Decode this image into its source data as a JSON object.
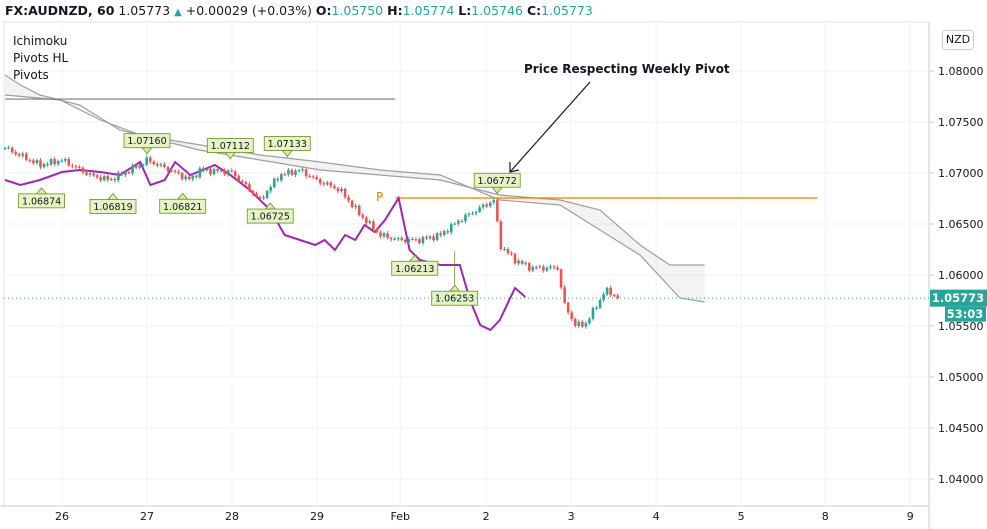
{
  "header": {
    "symbol": "FX:AUDNZD, 60",
    "last": "1.05773",
    "change": "+0.00029 (+0.03%)",
    "o_label": "O:",
    "o": "1.05750",
    "h_label": "H:",
    "h": "1.05774",
    "l_label": "L:",
    "l": "1.05746",
    "c_label": "C:",
    "c": "1.05773",
    "up_icon": "triangle-up"
  },
  "legend": [
    "Ichimoku",
    "Pivots HL",
    "Pivots"
  ],
  "currency_button": "NZD",
  "price_badge": "1.05773",
  "countdown": "53:03",
  "colors": {
    "up": "#26a69a",
    "down": "#ef5350",
    "lagging": "#9c27b0",
    "cloud": "#9e9e9e",
    "pivot": "#f57c00",
    "weekly": "#787b86"
  },
  "chart_data": {
    "type": "candlestick",
    "title": "FX:AUDNZD, 60",
    "annotation": "Price Respecting Weekly Pivot",
    "pivot_label": "P",
    "ylim": [
      1.0375,
      1.0848
    ],
    "xlim": [
      -0.73,
      10.2
    ],
    "y_ticks": [
      "1.08000",
      "1.07500",
      "1.07000",
      "1.06500",
      "1.06000",
      "1.05500",
      "1.05000",
      "1.04500",
      "1.04000"
    ],
    "x_ticks": [
      {
        "d": 0,
        "label": "26"
      },
      {
        "d": 1,
        "label": "27"
      },
      {
        "d": 2,
        "label": "28"
      },
      {
        "d": 3,
        "label": "29"
      },
      {
        "d": 3.98,
        "label": "Feb"
      },
      {
        "d": 4.99,
        "label": "2"
      },
      {
        "d": 5.99,
        "label": "3"
      },
      {
        "d": 6.99,
        "label": "4"
      },
      {
        "d": 7.99,
        "label": "5"
      },
      {
        "d": 8.98,
        "label": "8"
      },
      {
        "d": 9.98,
        "label": "9"
      }
    ],
    "price_path": [
      [
        -0.67,
        1.07245
      ],
      [
        -0.26,
        1.07078
      ],
      [
        0,
        1.07127
      ],
      [
        0.33,
        1.0698
      ],
      [
        0.56,
        1.06931
      ],
      [
        0.92,
        1.07078
      ],
      [
        1.0,
        1.07127
      ],
      [
        1.27,
        1.07029
      ],
      [
        1.51,
        1.06931
      ],
      [
        1.62,
        1.07029
      ],
      [
        1.99,
        1.0701
      ],
      [
        2.15,
        1.06882
      ],
      [
        2.33,
        1.06735
      ],
      [
        2.56,
        1.0698
      ],
      [
        2.8,
        1.07029
      ],
      [
        2.99,
        1.06931
      ],
      [
        3.27,
        1.06833
      ],
      [
        3.51,
        1.06588
      ],
      [
        3.74,
        1.06392
      ],
      [
        3.96,
        1.06343
      ],
      [
        4.21,
        1.06343
      ],
      [
        4.45,
        1.06392
      ],
      [
        4.68,
        1.06539
      ],
      [
        4.98,
        1.06686
      ],
      [
        5.09,
        1.06735
      ],
      [
        5.15,
        1.06294
      ],
      [
        5.33,
        1.06147
      ],
      [
        5.51,
        1.06069
      ],
      [
        5.86,
        1.06069
      ],
      [
        5.88,
        1.05755
      ],
      [
        6.04,
        1.0551
      ],
      [
        6.15,
        1.0551
      ],
      [
        6.33,
        1.05755
      ],
      [
        6.39,
        1.05853
      ],
      [
        6.56,
        1.05773
      ]
    ],
    "lagging_span": [
      [
        -0.67,
        1.06931
      ],
      [
        -0.49,
        1.06882
      ],
      [
        -0.26,
        1.06931
      ],
      [
        0,
        1.0701
      ],
      [
        0.21,
        1.07029
      ],
      [
        0.45,
        1.0701
      ],
      [
        0.68,
        1.0698
      ],
      [
        0.92,
        1.07108
      ],
      [
        1.04,
        1.06882
      ],
      [
        1.21,
        1.06931
      ],
      [
        1.33,
        1.07108
      ],
      [
        1.51,
        1.0698
      ],
      [
        1.8,
        1.07078
      ],
      [
        1.98,
        1.0698
      ],
      [
        2.21,
        1.06833
      ],
      [
        2.45,
        1.06637
      ],
      [
        2.62,
        1.06392
      ],
      [
        2.8,
        1.06343
      ],
      [
        2.98,
        1.06294
      ],
      [
        3.09,
        1.06343
      ],
      [
        3.21,
        1.06245
      ],
      [
        3.33,
        1.06392
      ],
      [
        3.45,
        1.06343
      ],
      [
        3.56,
        1.0649
      ],
      [
        3.68,
        1.06422
      ],
      [
        3.8,
        1.06539
      ],
      [
        3.96,
        1.06755
      ],
      [
        4.09,
        1.06245
      ],
      [
        4.21,
        1.06147
      ],
      [
        4.45,
        1.06098
      ],
      [
        4.68,
        1.06098
      ],
      [
        4.8,
        1.05755
      ],
      [
        4.92,
        1.0551
      ],
      [
        5.04,
        1.05461
      ],
      [
        5.15,
        1.05559
      ],
      [
        5.33,
        1.05873
      ],
      [
        5.45,
        1.05784
      ]
    ],
    "cloud_upper": [
      [
        -0.67,
        1.07961
      ],
      [
        -0.49,
        1.07863
      ],
      [
        -0.26,
        1.07765
      ],
      [
        0.21,
        1.07667
      ],
      [
        0.68,
        1.07422
      ],
      [
        1.15,
        1.07324
      ],
      [
        1.62,
        1.07225
      ],
      [
        2.33,
        1.07127
      ],
      [
        3.04,
        1.07029
      ],
      [
        3.74,
        1.0698
      ],
      [
        4.45,
        1.06931
      ],
      [
        5.15,
        1.06784
      ],
      [
        5.86,
        1.06735
      ],
      [
        6.33,
        1.06637
      ],
      [
        6.8,
        1.06294
      ],
      [
        7.15,
        1.06098
      ],
      [
        7.56,
        1.06098
      ]
    ],
    "cloud_lower": [
      [
        -0.67,
        1.07765
      ],
      [
        -0.02,
        1.07716
      ],
      [
        0.45,
        1.0752
      ],
      [
        0.92,
        1.07373
      ],
      [
        1.62,
        1.07275
      ],
      [
        2.33,
        1.07176
      ],
      [
        3.04,
        1.07108
      ],
      [
        3.74,
        1.07029
      ],
      [
        4.45,
        1.0698
      ],
      [
        5.15,
        1.06735
      ],
      [
        5.86,
        1.06686
      ],
      [
        6.33,
        1.06441
      ],
      [
        6.8,
        1.06196
      ],
      [
        7.27,
        1.05775
      ],
      [
        7.56,
        1.05735
      ]
    ],
    "pivot_lines": [
      {
        "name": "prior-pivot",
        "price": 1.07725,
        "from": -0.67,
        "to": 3.92
      },
      {
        "name": "weekly-pivot",
        "price": 1.06755,
        "from": 3.92,
        "to": 8.89
      }
    ],
    "pivot_points": [
      {
        "d": -0.24,
        "price": 1.06874,
        "type": "low",
        "label": "1.06874"
      },
      {
        "d": 1.0,
        "price": 1.0716,
        "type": "high",
        "label": "1.07160"
      },
      {
        "d": 0.6,
        "price": 1.06819,
        "type": "low",
        "label": "1.06819"
      },
      {
        "d": 1.42,
        "price": 1.06821,
        "type": "low",
        "label": "1.06821"
      },
      {
        "d": 1.98,
        "price": 1.07112,
        "type": "high",
        "label": "1.07112"
      },
      {
        "d": 2.45,
        "price": 1.06725,
        "type": "low",
        "label": "1.06725"
      },
      {
        "d": 2.65,
        "price": 1.07133,
        "type": "high",
        "label": "1.07133"
      },
      {
        "d": 4.15,
        "price": 1.06213,
        "type": "low",
        "label": "1.06213"
      },
      {
        "d": 4.62,
        "price": 1.06253,
        "type": "low",
        "label": "1.06253"
      },
      {
        "d": 5.12,
        "price": 1.06772,
        "type": "high",
        "label": "1.06772"
      }
    ],
    "last_price": 1.05773
  }
}
